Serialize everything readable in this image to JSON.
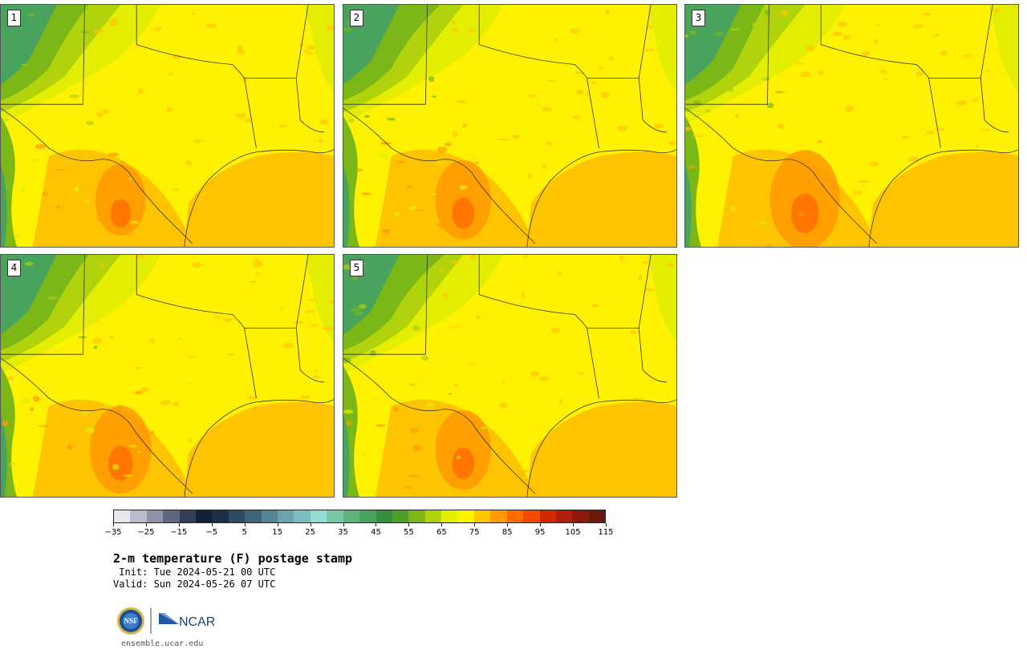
{
  "panels": [
    {
      "label": "1"
    },
    {
      "label": "2"
    },
    {
      "label": "3"
    },
    {
      "label": "4"
    },
    {
      "label": "5"
    }
  ],
  "colorbar": {
    "colors": [
      "#e5e7ec",
      "#b8bccb",
      "#8f93a8",
      "#5f6680",
      "#343d5a",
      "#142038",
      "#1c2f4b",
      "#2e4a62",
      "#3f6678",
      "#558594",
      "#6aa3ad",
      "#7dbdbe",
      "#94ddd4",
      "#76c9a4",
      "#5eb37c",
      "#48a35c",
      "#34903d",
      "#4e9e28",
      "#7cb718",
      "#b1d30b",
      "#e3ee02",
      "#fff200",
      "#ffc400",
      "#ff9a00",
      "#ff6d00",
      "#f44a00",
      "#d22a00",
      "#b21e0c",
      "#8e180e",
      "#6c1a0e"
    ],
    "tick_labels": [
      "−35",
      "−25",
      "−15",
      "−5",
      "5",
      "15",
      "25",
      "35",
      "45",
      "55",
      "65",
      "75",
      "85",
      "95",
      "105",
      "115"
    ]
  },
  "title": "2-m temperature (F) postage stamp",
  "init_text": " Init: Tue 2024-05-21 00 UTC",
  "valid_text": "Valid: Sun 2024-05-26 07 UTC",
  "footer": {
    "url": "ensemble.ucar.edu",
    "logo_text_nsf": "NSF",
    "logo_text_ncar": "NCAR"
  }
}
